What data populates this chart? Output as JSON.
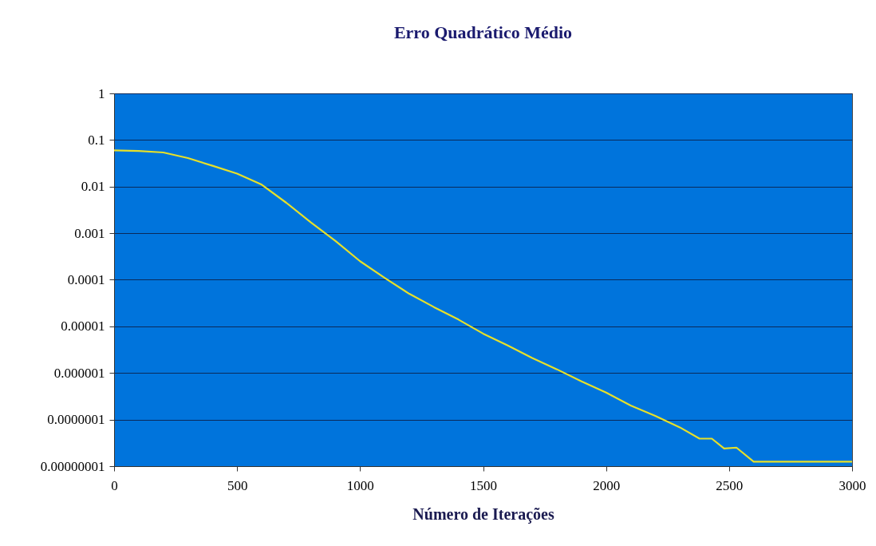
{
  "chart_data": {
    "type": "line",
    "title": "Erro Quadrático Médio",
    "xlabel": "Número de Iterações",
    "x": [
      0,
      100,
      200,
      300,
      400,
      500,
      600,
      700,
      800,
      900,
      1000,
      1100,
      1200,
      1300,
      1400,
      1500,
      1600,
      1700,
      1800,
      1900,
      2000,
      2100,
      2200,
      2300,
      2380,
      2430,
      2480,
      2530,
      2600,
      2700,
      2800,
      2900,
      3000
    ],
    "series": [
      {
        "color": "#e6e02a",
        "values": [
          0.06,
          0.058,
          0.054,
          0.041,
          0.028,
          0.019,
          0.011,
          0.0045,
          0.0017,
          0.00068,
          0.00025,
          0.00011,
          5e-05,
          2.6e-05,
          1.4e-05,
          7e-06,
          3.9e-06,
          2.1e-06,
          1.2e-06,
          6.6e-07,
          3.8e-07,
          2e-07,
          1.2e-07,
          6.8e-08,
          3.9e-08,
          3.9e-08,
          2.4e-08,
          2.5e-08,
          1.25e-08,
          1.25e-08,
          1.25e-08,
          1.25e-08,
          1.25e-08
        ]
      }
    ],
    "log": true,
    "xlim": [
      0,
      3000
    ],
    "xticks": [
      0,
      500,
      1000,
      1500,
      2000,
      2500,
      3000
    ],
    "ylim": [
      1e-08,
      1
    ],
    "yticks": [
      {
        "value": 1e-08,
        "label": "0.00000001"
      },
      {
        "value": 1e-07,
        "label": "0.0000001"
      },
      {
        "value": 1e-06,
        "label": "0.000001"
      },
      {
        "value": 1e-05,
        "label": "0.00001"
      },
      {
        "value": 0.0001,
        "label": "0.0001"
      },
      {
        "value": 0.001,
        "label": "0.001"
      },
      {
        "value": 0.01,
        "label": "0.01"
      },
      {
        "value": 0.1,
        "label": "0.1"
      },
      {
        "value": 1,
        "label": "1"
      }
    ],
    "grid": "y",
    "marker": "none",
    "line_style": "solid"
  }
}
